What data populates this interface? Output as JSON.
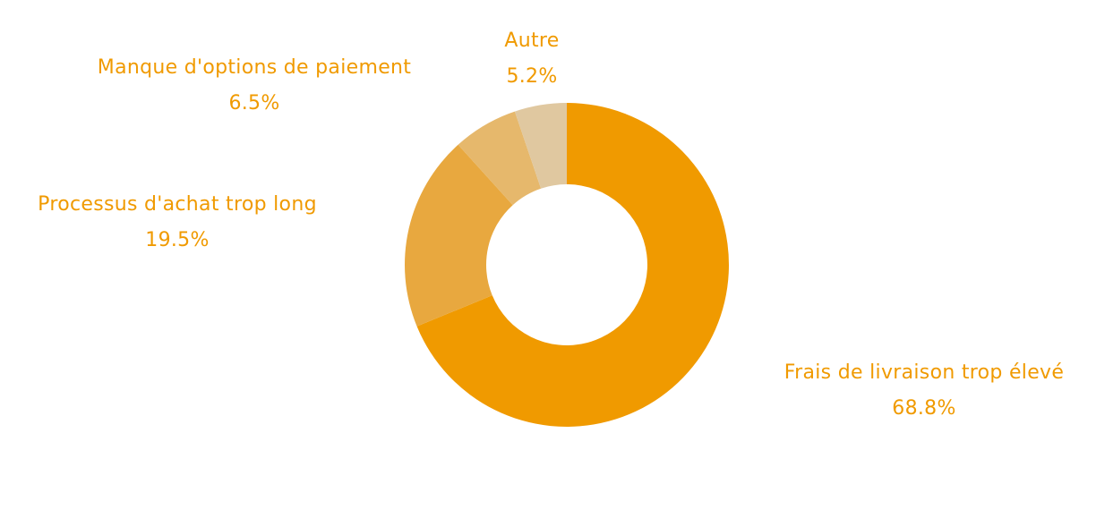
{
  "chart_data": {
    "type": "pie",
    "variant": "donut",
    "title": "",
    "categories": [
      "Frais de livraison trop élevé",
      "Processus d'achat trop long",
      "Manque d'options de paiement",
      "Autre"
    ],
    "values": [
      68.8,
      19.5,
      6.5,
      5.2
    ],
    "value_labels": [
      "68.8%",
      "19.5%",
      "6.5%",
      "5.2%"
    ],
    "colors": [
      "#f09a00",
      "#e8a83f",
      "#e6b86c",
      "#e0c8a0"
    ],
    "label_color": "#f09a00",
    "legend": "none",
    "labels_position": "outside"
  }
}
